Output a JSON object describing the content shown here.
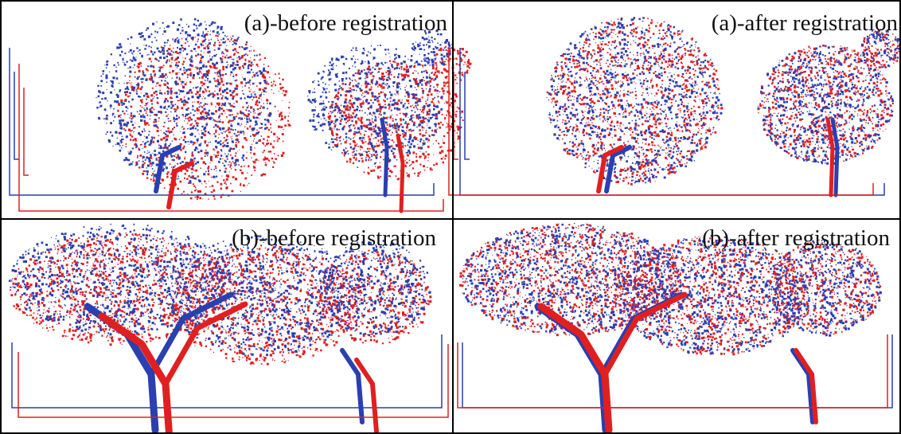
{
  "panels": [
    {
      "label": "(a)-before registration"
    },
    {
      "label": "(a)-after registration"
    },
    {
      "label": "(b)-before registration"
    },
    {
      "label": "(b)-after registration"
    }
  ]
}
